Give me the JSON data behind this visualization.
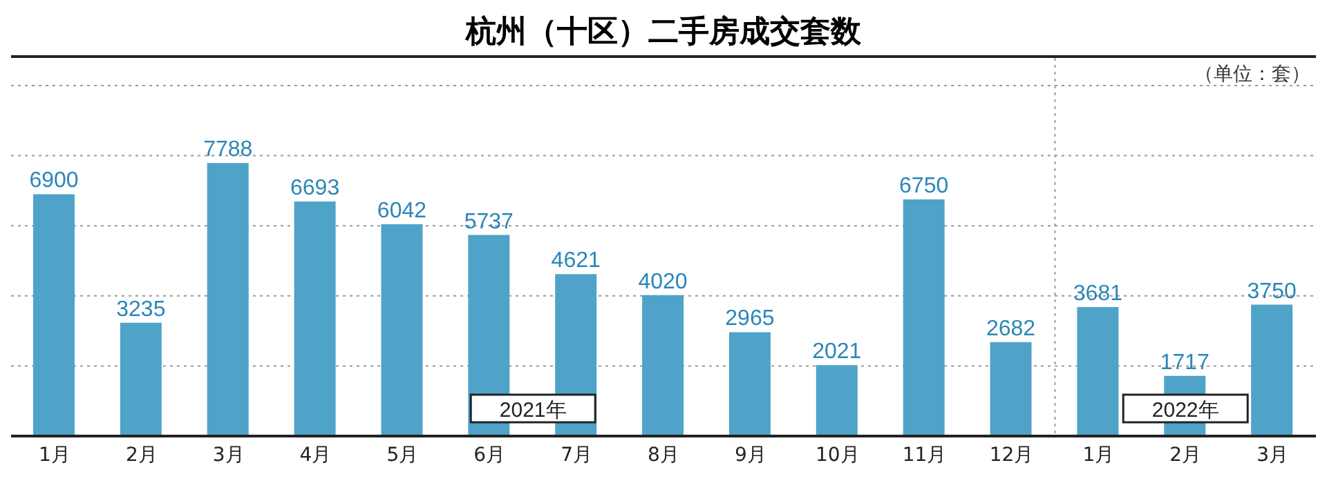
{
  "chart_data": {
    "type": "bar",
    "title": "杭州（十区）二手房成交套数",
    "categories": [
      "1月",
      "2月",
      "3月",
      "4月",
      "5月",
      "6月",
      "7月",
      "8月",
      "9月",
      "10月",
      "11月",
      "12月",
      "1月",
      "2月",
      "3月"
    ],
    "values": [
      6900,
      3235,
      7788,
      6693,
      6042,
      5737,
      4621,
      4020,
      2965,
      2021,
      6750,
      2682,
      3681,
      1717,
      3750
    ],
    "color": "#4fa3c9",
    "data_labels": true,
    "ylim": [
      0,
      10000
    ],
    "tick_labels": "x",
    "grid": "y",
    "annotations": [
      "（单位：套）",
      "2021年",
      "2022年"
    ]
  }
}
